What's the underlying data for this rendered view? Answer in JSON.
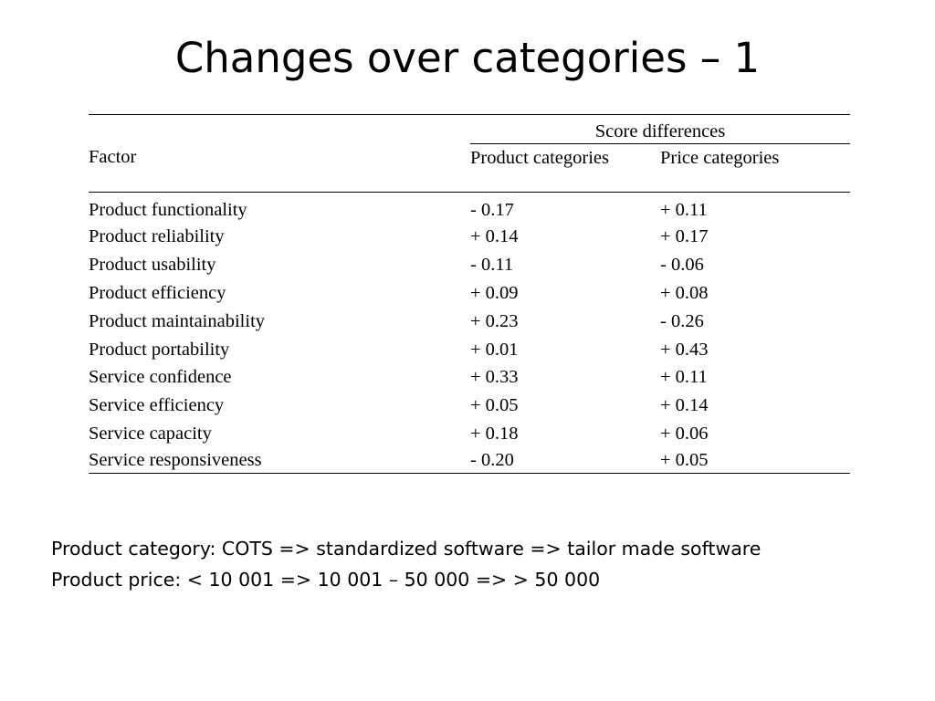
{
  "title": "Changes over categories – 1",
  "table": {
    "group_header": "Score differences",
    "columns": [
      "Factor",
      "Product categories",
      "Price categories"
    ],
    "rows": [
      {
        "factor": "Product functionality",
        "product": "- 0.17",
        "price": "+ 0.11"
      },
      {
        "factor": "Product reliability",
        "product": "+ 0.14",
        "price": "+ 0.17"
      },
      {
        "factor": "Product usability",
        "product": "- 0.11",
        "price": "- 0.06"
      },
      {
        "factor": "Product efficiency",
        "product": "+ 0.09",
        "price": "+ 0.08"
      },
      {
        "factor": "Product maintainability",
        "product": "+ 0.23",
        "price": "- 0.26"
      },
      {
        "factor": "Product portability",
        "product": "+ 0.01",
        "price": "+ 0.43"
      },
      {
        "factor": "Service confidence",
        "product": "+ 0.33",
        "price": "+ 0.11"
      },
      {
        "factor": "Service efficiency",
        "product": "+ 0.05",
        "price": "+ 0.14"
      },
      {
        "factor": "Service capacity",
        "product": "+ 0.18",
        "price": "+ 0.06"
      },
      {
        "factor": "Service responsiveness",
        "product": "- 0.20",
        "price": "+ 0.05"
      }
    ]
  },
  "notes": [
    "Product category: COTS => standardized software => tailor made software",
    "Product price: < 10 001 => 10 001 – 50 000 => > 50 000"
  ]
}
